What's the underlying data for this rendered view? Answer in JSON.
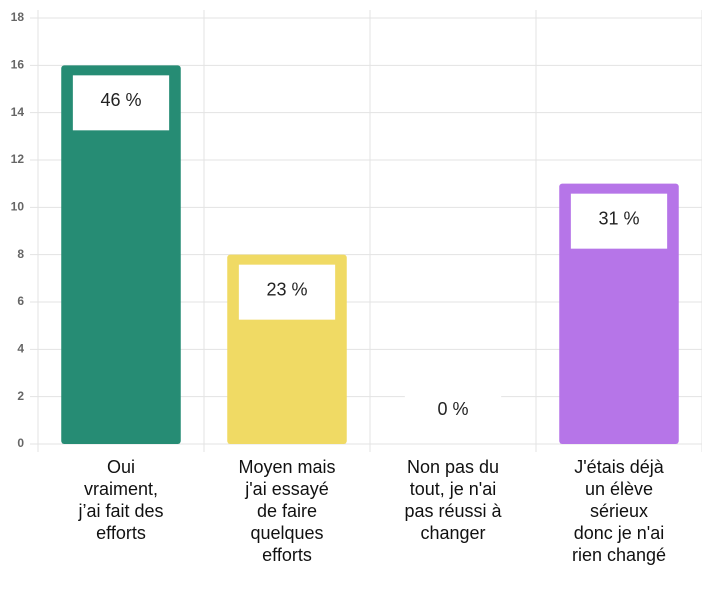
{
  "chart_data": {
    "type": "bar",
    "categories": [
      "Oui vraiment, j’ai fait des efforts",
      "Moyen mais j'ai essayé de faire quelques efforts",
      "Non pas du tout, je n'ai pas réussi à changer",
      "J'étais déjà un élève sérieux donc je n'ai rien changé"
    ],
    "values": [
      16,
      8,
      0,
      11
    ],
    "annotations": [
      "46 %",
      "23 %",
      "0 %",
      "31 %"
    ],
    "colors": [
      "#268c74",
      "#f0da64",
      null,
      "#b675e8"
    ],
    "ylim": [
      0,
      18
    ],
    "yticks": [
      0,
      2,
      4,
      6,
      8,
      10,
      12,
      14,
      16,
      18
    ],
    "grid": true
  }
}
